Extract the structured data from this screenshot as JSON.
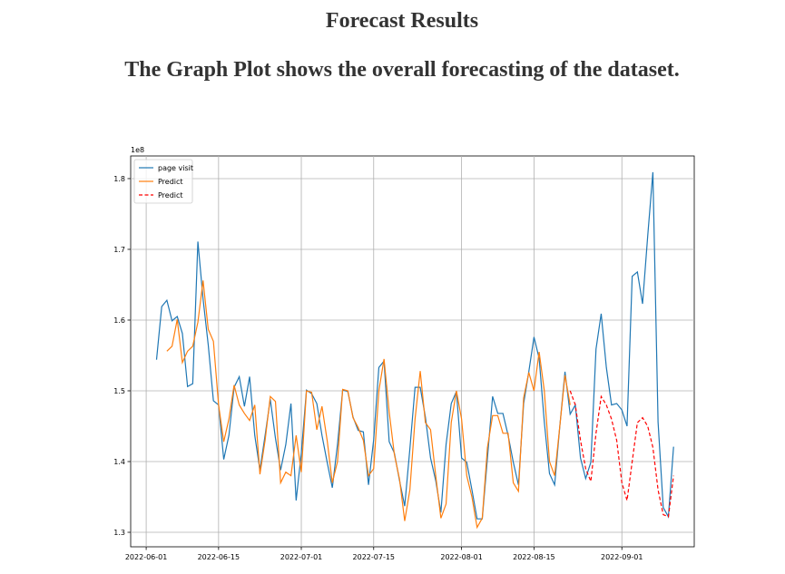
{
  "header": {
    "title": "Forecast Results",
    "subtitle": "The Graph Plot shows the overall forecasting of the dataset."
  },
  "chart_data": {
    "type": "line",
    "offset_label": "1e8",
    "grid": true,
    "legend": "upper left",
    "x": [
      "2022-06-03",
      "2022-06-04",
      "2022-06-05",
      "2022-06-06",
      "2022-06-07",
      "2022-06-08",
      "2022-06-09",
      "2022-06-10",
      "2022-06-11",
      "2022-06-12",
      "2022-06-13",
      "2022-06-14",
      "2022-06-15",
      "2022-06-16",
      "2022-06-17",
      "2022-06-18",
      "2022-06-19",
      "2022-06-20",
      "2022-06-21",
      "2022-06-22",
      "2022-06-23",
      "2022-06-24",
      "2022-06-25",
      "2022-06-26",
      "2022-06-27",
      "2022-06-28",
      "2022-06-29",
      "2022-06-30",
      "2022-07-01",
      "2022-07-02",
      "2022-07-03",
      "2022-07-04",
      "2022-07-05",
      "2022-07-06",
      "2022-07-07",
      "2022-07-08",
      "2022-07-09",
      "2022-07-10",
      "2022-07-11",
      "2022-07-12",
      "2022-07-13",
      "2022-07-14",
      "2022-07-15",
      "2022-07-16",
      "2022-07-17",
      "2022-07-18",
      "2022-07-19",
      "2022-07-20",
      "2022-07-21",
      "2022-07-22",
      "2022-07-23",
      "2022-07-24",
      "2022-07-25",
      "2022-07-26",
      "2022-07-27",
      "2022-07-28",
      "2022-07-29",
      "2022-07-30",
      "2022-07-31",
      "2022-08-01",
      "2022-08-02",
      "2022-08-03",
      "2022-08-04",
      "2022-08-05",
      "2022-08-06",
      "2022-08-07",
      "2022-08-08",
      "2022-08-09",
      "2022-08-10",
      "2022-08-11",
      "2022-08-12",
      "2022-08-13",
      "2022-08-14",
      "2022-08-15",
      "2022-08-16",
      "2022-08-17",
      "2022-08-18",
      "2022-08-19",
      "2022-08-20",
      "2022-08-21",
      "2022-08-22",
      "2022-08-23",
      "2022-08-24",
      "2022-08-25",
      "2022-08-26",
      "2022-08-27",
      "2022-08-28",
      "2022-08-29",
      "2022-08-30",
      "2022-08-31",
      "2022-09-01",
      "2022-09-02",
      "2022-09-03",
      "2022-09-04",
      "2022-09-05",
      "2022-09-06",
      "2022-09-07",
      "2022-09-08",
      "2022-09-09",
      "2022-09-10",
      "2022-09-11"
    ],
    "xlim": [
      "2022-05-29",
      "2022-09-15"
    ],
    "xticks": [
      "2022-06-01",
      "2022-06-15",
      "2022-07-01",
      "2022-07-15",
      "2022-08-01",
      "2022-08-15",
      "2022-09-01"
    ],
    "ylim": [
      1.2795,
      1.832
    ],
    "yticks": [
      1.3,
      1.4,
      1.5,
      1.6,
      1.7,
      1.8
    ],
    "series": [
      {
        "name": "page visit",
        "color": "#1f77b4",
        "dash": false,
        "values": [
          1.544,
          1.619,
          1.628,
          1.599,
          1.605,
          1.581,
          1.506,
          1.51,
          1.711,
          1.63,
          1.565,
          1.486,
          1.48,
          1.403,
          1.437,
          1.505,
          1.52,
          1.478,
          1.52,
          1.437,
          1.388,
          1.437,
          1.488,
          1.433,
          1.388,
          1.424,
          1.482,
          1.345,
          1.412,
          1.501,
          1.496,
          1.482,
          1.437,
          1.399,
          1.363,
          1.424,
          1.501,
          1.499,
          1.463,
          1.444,
          1.442,
          1.367,
          1.431,
          1.533,
          1.542,
          1.428,
          1.412,
          1.373,
          1.337,
          1.418,
          1.505,
          1.505,
          1.463,
          1.405,
          1.373,
          1.328,
          1.424,
          1.482,
          1.499,
          1.405,
          1.399,
          1.36,
          1.319,
          1.319,
          1.405,
          1.492,
          1.468,
          1.468,
          1.437,
          1.399,
          1.367,
          1.482,
          1.527,
          1.576,
          1.546,
          1.456,
          1.383,
          1.367,
          1.45,
          1.527,
          1.467,
          1.48,
          1.405,
          1.376,
          1.399,
          1.559,
          1.609,
          1.533,
          1.48,
          1.482,
          1.473,
          1.45,
          1.662,
          1.668,
          1.623,
          1.719,
          1.809,
          1.456,
          1.335,
          1.322,
          1.421
        ]
      },
      {
        "name": "Predict",
        "color": "#ff7f0e",
        "dash": false,
        "values": [
          null,
          null,
          1.556,
          1.563,
          1.601,
          1.54,
          1.556,
          1.563,
          1.597,
          1.656,
          1.587,
          1.57,
          1.48,
          1.428,
          1.46,
          1.508,
          1.48,
          1.468,
          1.458,
          1.48,
          1.382,
          1.43,
          1.492,
          1.485,
          1.37,
          1.385,
          1.38,
          1.437,
          1.385,
          1.5,
          1.498,
          1.445,
          1.478,
          1.43,
          1.37,
          1.4,
          1.502,
          1.5,
          1.462,
          1.448,
          1.43,
          1.38,
          1.39,
          1.5,
          1.545,
          1.47,
          1.41,
          1.375,
          1.316,
          1.36,
          1.46,
          1.528,
          1.455,
          1.445,
          1.38,
          1.32,
          1.34,
          1.455,
          1.5,
          1.46,
          1.38,
          1.35,
          1.307,
          1.32,
          1.42,
          1.465,
          1.465,
          1.44,
          1.44,
          1.37,
          1.358,
          1.49,
          1.526,
          1.5,
          1.555,
          1.5,
          1.4,
          1.38,
          1.45,
          1.522,
          1.48,
          null,
          null,
          null,
          null,
          null,
          null,
          null,
          null,
          null,
          null,
          null,
          null,
          null,
          null,
          null,
          null,
          null,
          null,
          null,
          null
        ]
      },
      {
        "name": "Predict",
        "color": "#ff0000",
        "dash": true,
        "values": [
          null,
          null,
          null,
          null,
          null,
          null,
          null,
          null,
          null,
          null,
          null,
          null,
          null,
          null,
          null,
          null,
          null,
          null,
          null,
          null,
          null,
          null,
          null,
          null,
          null,
          null,
          null,
          null,
          null,
          null,
          null,
          null,
          null,
          null,
          null,
          null,
          null,
          null,
          null,
          null,
          null,
          null,
          null,
          null,
          null,
          null,
          null,
          null,
          null,
          null,
          null,
          null,
          null,
          null,
          null,
          null,
          null,
          null,
          null,
          null,
          null,
          null,
          null,
          null,
          null,
          null,
          null,
          null,
          null,
          null,
          null,
          null,
          null,
          null,
          null,
          null,
          null,
          null,
          null,
          null,
          1.5,
          1.48,
          1.43,
          1.39,
          1.372,
          1.44,
          1.492,
          1.48,
          1.46,
          1.43,
          1.37,
          1.345,
          1.4,
          1.455,
          1.462,
          1.45,
          1.42,
          1.36,
          1.325,
          1.322,
          1.38
        ]
      }
    ]
  }
}
